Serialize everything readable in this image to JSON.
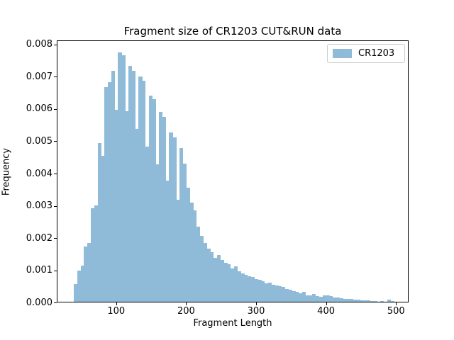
{
  "figure": {
    "title": "Fragment size of CR1203 CUT&RUN data",
    "xlabel": "Fragment Length",
    "ylabel": "Frequency",
    "legend": {
      "label": "CR1203",
      "swatch_color": "#8fbbd9",
      "position": "upper right"
    },
    "background_color": "#ffffff"
  },
  "chart_data": {
    "type": "bar",
    "subtype": "histogram",
    "title": "Fragment size of CR1203 CUT&RUN data",
    "xlabel": "Fragment Length",
    "ylabel": "Frequency",
    "legend_entries": [
      "CR1203"
    ],
    "legend_position": "upper right",
    "grid": false,
    "bar_color": "#8fbbd9",
    "xlim": [
      15,
      518
    ],
    "ylim": [
      0,
      0.00813
    ],
    "x_ticks": [
      100,
      200,
      300,
      400,
      500
    ],
    "y_ticks": [
      0.0,
      0.001,
      0.002,
      0.003,
      0.004,
      0.005,
      0.006,
      0.007,
      0.008
    ],
    "y_tick_labels": [
      "0.000",
      "0.001",
      "0.002",
      "0.003",
      "0.004",
      "0.005",
      "0.006",
      "0.007",
      "0.008"
    ],
    "series": [
      {
        "name": "CR1203",
        "bin_start": 38.3,
        "bin_width": 4.87,
        "frequencies": [
          0.00057,
          0.00098,
          0.00114,
          0.00173,
          0.00185,
          0.00293,
          0.00302,
          0.00495,
          0.00455,
          0.00667,
          0.00683,
          0.00718,
          0.00598,
          0.00776,
          0.00766,
          0.00594,
          0.00733,
          0.00718,
          0.00539,
          0.00702,
          0.00688,
          0.00484,
          0.00641,
          0.0063,
          0.00429,
          0.0059,
          0.00575,
          0.00378,
          0.00527,
          0.00513,
          0.00319,
          0.0048,
          0.0043,
          0.00356,
          0.0031,
          0.00286,
          0.00235,
          0.00206,
          0.00184,
          0.00168,
          0.00156,
          0.00138,
          0.00148,
          0.00132,
          0.00124,
          0.00118,
          0.00105,
          0.00112,
          0.00096,
          0.0009,
          0.00085,
          0.00082,
          0.0008,
          0.00072,
          0.0007,
          0.00065,
          0.0006,
          0.00062,
          0.00055,
          0.00052,
          0.0005,
          0.00048,
          0.00042,
          0.0004,
          0.00036,
          0.00032,
          0.00028,
          0.00033,
          0.00022,
          0.00021,
          0.00027,
          0.0002,
          0.00018,
          0.00022,
          0.00021,
          0.0002,
          0.00016,
          0.000145,
          0.00013,
          0.00012,
          0.00011,
          0.0001,
          9e-05,
          8.5e-05,
          7.5e-05,
          6.5e-05,
          7e-05,
          5e-05,
          4e-05,
          3e-05,
          3.5e-05,
          3e-05,
          9.5e-05,
          4e-05
        ]
      }
    ]
  }
}
